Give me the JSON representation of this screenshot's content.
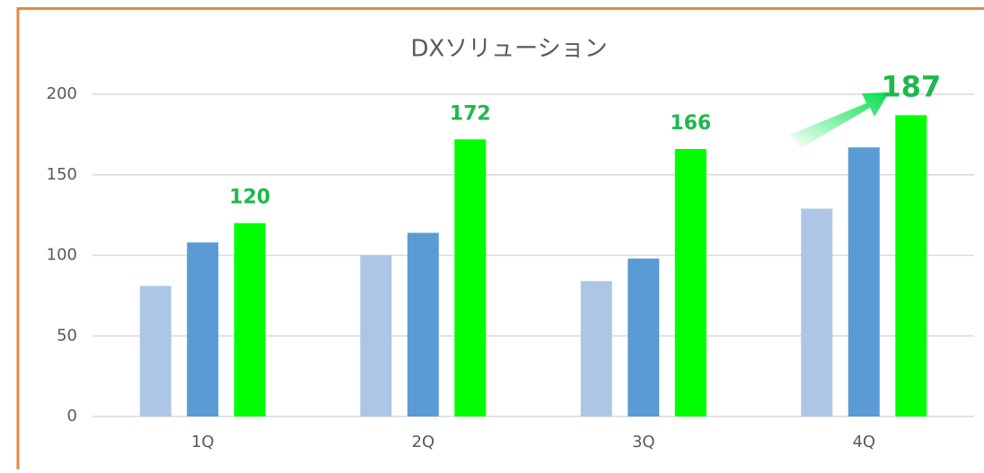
{
  "chart_data": {
    "type": "bar",
    "title": "DXソリューション",
    "categories": [
      "1Q",
      "2Q",
      "3Q",
      "4Q"
    ],
    "series": [
      {
        "color": "#adc6e5",
        "values": [
          81,
          100,
          84,
          129
        ]
      },
      {
        "color": "#5b9bd5",
        "values": [
          108,
          114,
          98,
          167
        ]
      },
      {
        "color": "#00ff00",
        "values": [
          120,
          172,
          166,
          187
        ],
        "labels": true
      }
    ],
    "ylim": [
      0,
      200
    ],
    "yticks": [
      0,
      50,
      100,
      150,
      200
    ],
    "grid": true
  }
}
